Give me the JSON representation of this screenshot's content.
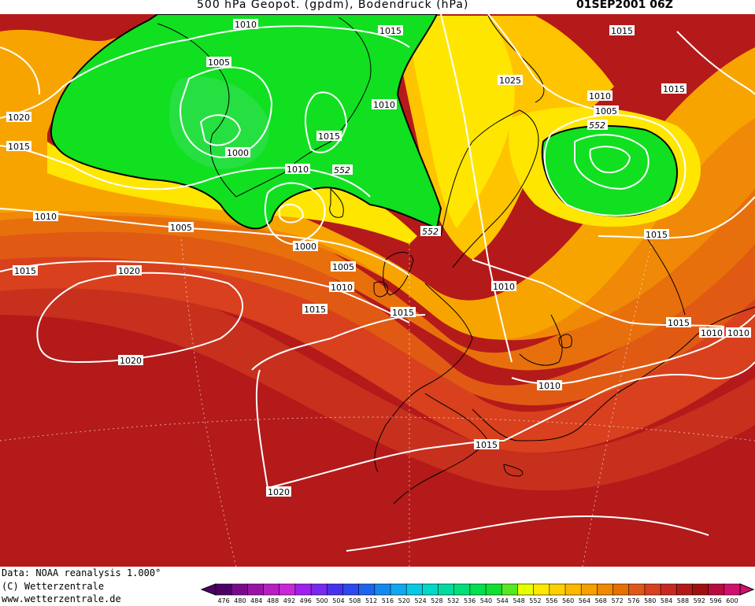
{
  "title": {
    "main": "500 hPa Geopot. (gpdm), Bodendruck (hPa)",
    "date": "01SEP2001 06Z"
  },
  "credits": [
    "Data: NOAA reanalysis 1.000°",
    "(C) Wetterzentrale",
    "www.wetterzentrale.de"
  ],
  "pressure_labels": [
    {
      "text": "1010"
    },
    {
      "text": "1015"
    },
    {
      "text": "1005"
    },
    {
      "text": "1020"
    },
    {
      "text": "1015"
    },
    {
      "text": "1000"
    },
    {
      "text": "1015"
    },
    {
      "text": "1010"
    },
    {
      "text": "1010"
    },
    {
      "text": "1005"
    },
    {
      "text": "1000"
    },
    {
      "text": "1005"
    },
    {
      "text": "1010"
    },
    {
      "text": "1015"
    },
    {
      "text": "1020"
    },
    {
      "text": "1020"
    },
    {
      "text": "1015"
    },
    {
      "text": "1025"
    },
    {
      "text": "1015"
    },
    {
      "text": "1010"
    },
    {
      "text": "1005"
    },
    {
      "text": "1015"
    },
    {
      "text": "1015"
    },
    {
      "text": "1015"
    },
    {
      "text": "1010"
    },
    {
      "text": "1010"
    },
    {
      "text": "1010"
    },
    {
      "text": "1010"
    },
    {
      "text": "1015"
    },
    {
      "text": "1020"
    },
    {
      "text": "1015"
    }
  ],
  "geopot_labels": [
    {
      "text": "552"
    },
    {
      "text": "552"
    },
    {
      "text": "552"
    }
  ],
  "colorbar": {
    "ticks": [
      "476",
      "480",
      "484",
      "488",
      "492",
      "496",
      "500",
      "504",
      "508",
      "512",
      "516",
      "520",
      "524",
      "528",
      "532",
      "536",
      "540",
      "544",
      "548",
      "552",
      "556",
      "560",
      "564",
      "568",
      "572",
      "576",
      "580",
      "584",
      "588",
      "592",
      "596",
      "600"
    ],
    "colors": [
      "#4c0066",
      "#7a0a8c",
      "#9a12a8",
      "#b81ec4",
      "#c828d8",
      "#a020f0",
      "#7a28f0",
      "#4830f0",
      "#2c48f0",
      "#1c64f0",
      "#1488f0",
      "#10a8f0",
      "#08c8e8",
      "#00d8c8",
      "#00dca0",
      "#00e078",
      "#00e050",
      "#10e030",
      "#58e820",
      "#e8ff00",
      "#ffe800",
      "#ffd000",
      "#ffb800",
      "#f8a000",
      "#f08800",
      "#e87000",
      "#e05818",
      "#d84020",
      "#c82820",
      "#b41818",
      "#a01010",
      "#b80a3c",
      "#d0106c"
    ]
  }
}
